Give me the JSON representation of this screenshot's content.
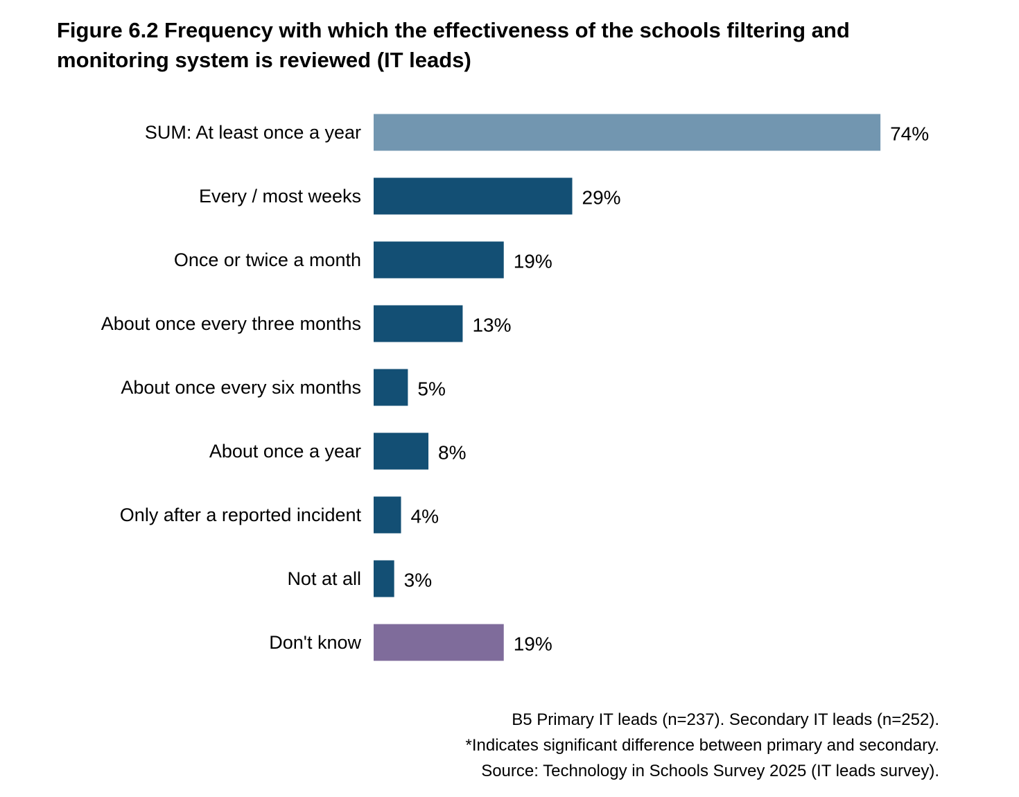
{
  "title": "Figure 6.2 Frequency with which the effectiveness of the schools filtering and monitoring system is reviewed (IT leads)",
  "chart_data": {
    "type": "bar",
    "orientation": "horizontal",
    "categories": [
      "SUM: At least once a year",
      "Every / most weeks",
      "Once or twice a month",
      "About once every three months",
      "About once every six months",
      "About once a year",
      "Only after a reported incident",
      "Not at all",
      "Don't know"
    ],
    "values": [
      74,
      29,
      19,
      13,
      5,
      8,
      4,
      3,
      19
    ],
    "value_labels": [
      "74%",
      "29%",
      "19%",
      "13%",
      "5%",
      "8%",
      "4%",
      "3%",
      "19%"
    ],
    "unit": "%",
    "bar_colors": [
      "#7296b0",
      "#134f74",
      "#134f74",
      "#134f74",
      "#134f74",
      "#134f74",
      "#134f74",
      "#134f74",
      "#7f6c9b"
    ],
    "xlim": [
      0,
      100
    ],
    "grid": false,
    "legend": "none"
  },
  "footnotes": [
    "B5 Primary IT leads (n=237). Secondary IT leads (n=252).",
    "*Indicates significant difference between primary and secondary.",
    "Source: Technology in Schools Survey 2025 (IT leads survey)."
  ]
}
